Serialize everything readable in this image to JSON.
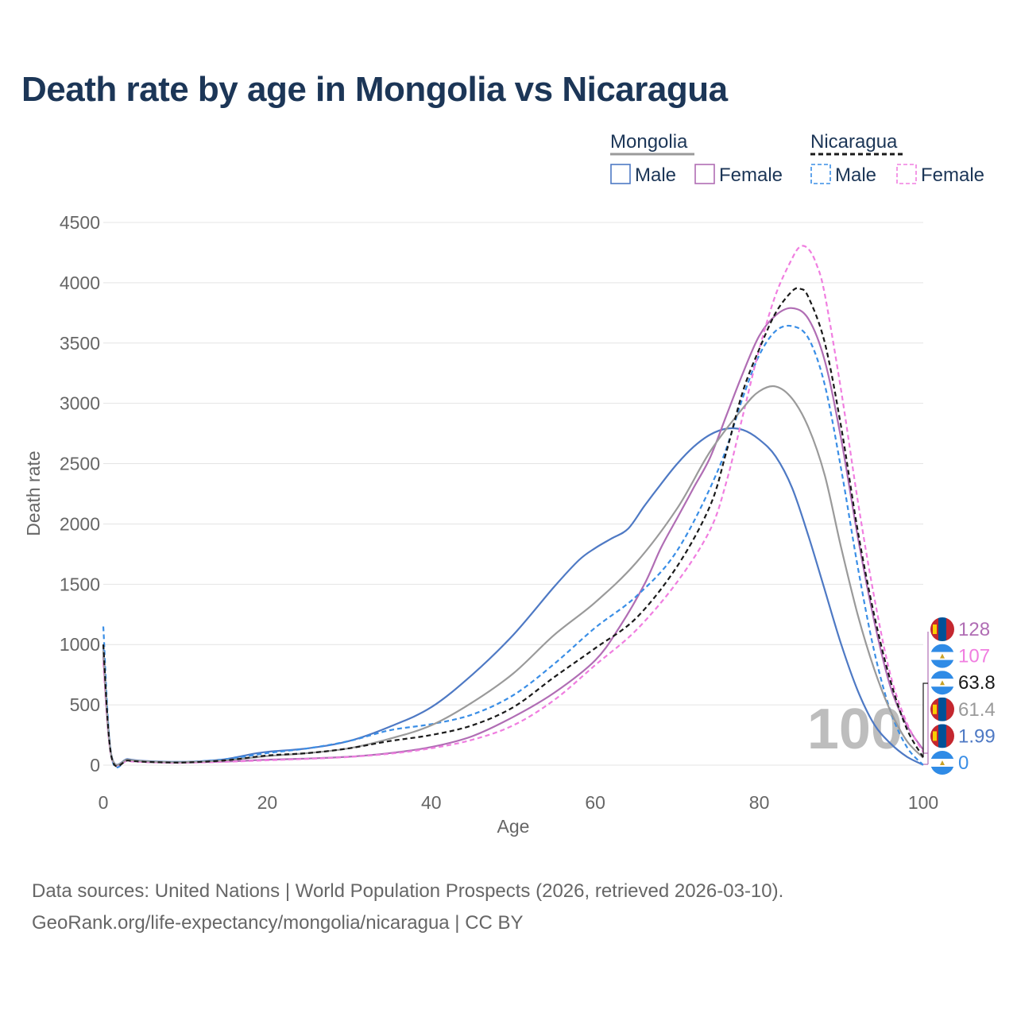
{
  "title": "Death rate by age in Mongolia vs Nicaragua",
  "source_line1": "Data sources: United Nations | World Population Prospects (2026, retrieved 2026-03-10).",
  "source_line2": "GeoRank.org/life-expectancy/mongolia/nicaragua | CC BY",
  "legend": {
    "groups": [
      {
        "name": "Mongolia",
        "style": "solid",
        "items": [
          "Male",
          "Female"
        ]
      },
      {
        "name": "Nicaragua",
        "style": "dashed",
        "items": [
          "Male",
          "Female"
        ]
      }
    ]
  },
  "watermark_age": "100",
  "chart_data": {
    "type": "line",
    "title": "Death rate by age in Mongolia vs Nicaragua",
    "xlabel": "Age",
    "ylabel": "Death rate",
    "xlim": [
      0,
      100
    ],
    "ylim": [
      0,
      4500
    ],
    "x_ticks": [
      0,
      20,
      40,
      60,
      80,
      100
    ],
    "y_ticks": [
      0,
      500,
      1000,
      1500,
      2000,
      2500,
      3000,
      3500,
      4000,
      4500
    ],
    "grid": true,
    "series": [
      {
        "name": "Mongolia Male",
        "country": "Mongolia",
        "sex": "Male",
        "color": "#4e79c4",
        "dash": false,
        "end_label": "1.99",
        "points": [
          [
            0,
            1000
          ],
          [
            1,
            80
          ],
          [
            3,
            50
          ],
          [
            5,
            35
          ],
          [
            8,
            28
          ],
          [
            10,
            28
          ],
          [
            12,
            32
          ],
          [
            15,
            50
          ],
          [
            18,
            90
          ],
          [
            20,
            110
          ],
          [
            25,
            140
          ],
          [
            30,
            200
          ],
          [
            35,
            320
          ],
          [
            40,
            480
          ],
          [
            45,
            750
          ],
          [
            50,
            1080
          ],
          [
            55,
            1480
          ],
          [
            58,
            1700
          ],
          [
            60,
            1800
          ],
          [
            62,
            1880
          ],
          [
            64,
            1960
          ],
          [
            66,
            2150
          ],
          [
            68,
            2330
          ],
          [
            70,
            2500
          ],
          [
            72,
            2640
          ],
          [
            74,
            2740
          ],
          [
            76,
            2790
          ],
          [
            78,
            2780
          ],
          [
            80,
            2700
          ],
          [
            82,
            2560
          ],
          [
            84,
            2300
          ],
          [
            86,
            1900
          ],
          [
            88,
            1450
          ],
          [
            90,
            1000
          ],
          [
            92,
            620
          ],
          [
            94,
            340
          ],
          [
            96,
            180
          ],
          [
            98,
            70
          ],
          [
            100,
            2
          ]
        ]
      },
      {
        "name": "Mongolia Female",
        "country": "Mongolia",
        "sex": "Female",
        "color": "#b06db4",
        "dash": false,
        "end_label": "128",
        "points": [
          [
            0,
            900
          ],
          [
            1,
            70
          ],
          [
            3,
            40
          ],
          [
            5,
            28
          ],
          [
            8,
            22
          ],
          [
            10,
            22
          ],
          [
            15,
            30
          ],
          [
            20,
            45
          ],
          [
            25,
            55
          ],
          [
            30,
            70
          ],
          [
            35,
            100
          ],
          [
            40,
            150
          ],
          [
            45,
            240
          ],
          [
            50,
            400
          ],
          [
            55,
            600
          ],
          [
            60,
            870
          ],
          [
            63,
            1150
          ],
          [
            66,
            1500
          ],
          [
            68,
            1800
          ],
          [
            70,
            2050
          ],
          [
            72,
            2300
          ],
          [
            74,
            2550
          ],
          [
            76,
            2900
          ],
          [
            78,
            3250
          ],
          [
            80,
            3560
          ],
          [
            82,
            3730
          ],
          [
            84,
            3790
          ],
          [
            86,
            3700
          ],
          [
            88,
            3350
          ],
          [
            90,
            2700
          ],
          [
            92,
            1900
          ],
          [
            94,
            1200
          ],
          [
            96,
            650
          ],
          [
            98,
            330
          ],
          [
            100,
            128
          ]
        ]
      },
      {
        "name": "Nicaragua Male",
        "country": "Nicaragua",
        "sex": "Male",
        "color": "#3a8ee6",
        "dash": true,
        "end_label": "0",
        "points": [
          [
            0,
            1150
          ],
          [
            1,
            70
          ],
          [
            3,
            40
          ],
          [
            5,
            30
          ],
          [
            8,
            25
          ],
          [
            10,
            25
          ],
          [
            15,
            50
          ],
          [
            20,
            100
          ],
          [
            25,
            140
          ],
          [
            30,
            200
          ],
          [
            35,
            290
          ],
          [
            40,
            340
          ],
          [
            45,
            420
          ],
          [
            50,
            580
          ],
          [
            55,
            840
          ],
          [
            60,
            1140
          ],
          [
            65,
            1400
          ],
          [
            70,
            1780
          ],
          [
            75,
            2450
          ],
          [
            78,
            3050
          ],
          [
            80,
            3400
          ],
          [
            82,
            3600
          ],
          [
            84,
            3640
          ],
          [
            86,
            3540
          ],
          [
            88,
            3150
          ],
          [
            90,
            2450
          ],
          [
            92,
            1650
          ],
          [
            94,
            950
          ],
          [
            96,
            450
          ],
          [
            98,
            150
          ],
          [
            100,
            0
          ]
        ]
      },
      {
        "name": "Nicaragua Female",
        "country": "Nicaragua",
        "sex": "Female",
        "color": "#f07ee0",
        "dash": true,
        "end_label": "107",
        "points": [
          [
            0,
            850
          ],
          [
            1,
            65
          ],
          [
            3,
            35
          ],
          [
            5,
            25
          ],
          [
            8,
            20
          ],
          [
            10,
            20
          ],
          [
            15,
            28
          ],
          [
            20,
            40
          ],
          [
            25,
            52
          ],
          [
            30,
            68
          ],
          [
            35,
            95
          ],
          [
            40,
            140
          ],
          [
            45,
            210
          ],
          [
            50,
            330
          ],
          [
            55,
            540
          ],
          [
            60,
            830
          ],
          [
            65,
            1120
          ],
          [
            70,
            1520
          ],
          [
            74,
            1950
          ],
          [
            76,
            2350
          ],
          [
            78,
            2900
          ],
          [
            80,
            3450
          ],
          [
            82,
            3900
          ],
          [
            84,
            4200
          ],
          [
            85,
            4300
          ],
          [
            86,
            4280
          ],
          [
            87,
            4150
          ],
          [
            88,
            3900
          ],
          [
            90,
            3100
          ],
          [
            92,
            2200
          ],
          [
            94,
            1400
          ],
          [
            96,
            750
          ],
          [
            98,
            350
          ],
          [
            100,
            107
          ]
        ]
      },
      {
        "name": "Mongolia Total",
        "country": "Mongolia",
        "sex": "Total",
        "color": "#9a9a9a",
        "dash": false,
        "end_label": "61.4",
        "points": [
          [
            0,
            950
          ],
          [
            1,
            75
          ],
          [
            3,
            45
          ],
          [
            5,
            32
          ],
          [
            8,
            25
          ],
          [
            10,
            25
          ],
          [
            15,
            40
          ],
          [
            20,
            75
          ],
          [
            25,
            100
          ],
          [
            30,
            140
          ],
          [
            35,
            220
          ],
          [
            40,
            330
          ],
          [
            45,
            520
          ],
          [
            50,
            760
          ],
          [
            55,
            1080
          ],
          [
            60,
            1350
          ],
          [
            65,
            1680
          ],
          [
            70,
            2130
          ],
          [
            74,
            2600
          ],
          [
            78,
            2960
          ],
          [
            80,
            3100
          ],
          [
            82,
            3140
          ],
          [
            84,
            3040
          ],
          [
            86,
            2800
          ],
          [
            88,
            2400
          ],
          [
            90,
            1800
          ],
          [
            92,
            1250
          ],
          [
            94,
            800
          ],
          [
            96,
            450
          ],
          [
            98,
            200
          ],
          [
            100,
            61.4
          ]
        ]
      },
      {
        "name": "Nicaragua Total",
        "country": "Nicaragua",
        "sex": "Total",
        "color": "#1a1a1a",
        "dash": true,
        "end_label": "63.8",
        "points": [
          [
            0,
            1000
          ],
          [
            1,
            68
          ],
          [
            3,
            38
          ],
          [
            5,
            28
          ],
          [
            8,
            22
          ],
          [
            10,
            22
          ],
          [
            15,
            40
          ],
          [
            20,
            80
          ],
          [
            25,
            100
          ],
          [
            30,
            140
          ],
          [
            35,
            200
          ],
          [
            40,
            250
          ],
          [
            45,
            330
          ],
          [
            50,
            480
          ],
          [
            55,
            730
          ],
          [
            60,
            970
          ],
          [
            65,
            1220
          ],
          [
            70,
            1650
          ],
          [
            74,
            2150
          ],
          [
            76,
            2600
          ],
          [
            78,
            3100
          ],
          [
            80,
            3450
          ],
          [
            82,
            3750
          ],
          [
            84,
            3930
          ],
          [
            85,
            3950
          ],
          [
            86,
            3880
          ],
          [
            88,
            3500
          ],
          [
            90,
            2800
          ],
          [
            92,
            1950
          ],
          [
            94,
            1250
          ],
          [
            96,
            700
          ],
          [
            98,
            300
          ],
          [
            100,
            63.8
          ]
        ]
      }
    ],
    "end_labels_order": [
      {
        "label": "128",
        "country": "Mongolia",
        "color": "#b06db4"
      },
      {
        "label": "107",
        "country": "Nicaragua",
        "color": "#f07ee0"
      },
      {
        "label": "63.8",
        "country": "Nicaragua",
        "color": "#1a1a1a"
      },
      {
        "label": "61.4",
        "country": "Mongolia",
        "color": "#9a9a9a"
      },
      {
        "label": "1.99",
        "country": "Mongolia",
        "color": "#4e79c4"
      },
      {
        "label": "0",
        "country": "Nicaragua",
        "color": "#3a8ee6"
      }
    ]
  }
}
